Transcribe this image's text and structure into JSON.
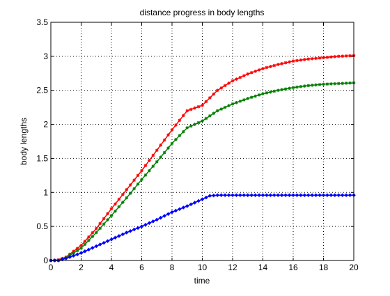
{
  "chart_data": {
    "type": "line",
    "title": "distance progress in body lengths",
    "xlabel": "time",
    "ylabel": "body lengths",
    "xlim": [
      0,
      20
    ],
    "ylim": [
      0,
      3.5
    ],
    "xticks": [
      0,
      2,
      4,
      6,
      8,
      10,
      12,
      14,
      16,
      18,
      20
    ],
    "xtick_labels": [
      "0",
      "2",
      "4",
      "6",
      "8",
      "10",
      "12",
      "14",
      "16",
      "18",
      "20"
    ],
    "yticks": [
      0,
      0.5,
      1,
      1.5,
      2,
      2.5,
      3,
      3.5
    ],
    "ytick_labels": [
      "0",
      "0.5",
      "1",
      "1.5",
      "2",
      "2.5",
      "3",
      "3.5"
    ],
    "grid": "on",
    "series": [
      {
        "color": "#ff0000",
        "marker": "star",
        "points": [
          [
            0,
            0
          ],
          [
            0.5,
            0.01
          ],
          [
            1,
            0.05
          ],
          [
            2,
            0.22
          ],
          [
            3,
            0.47
          ],
          [
            4,
            0.76
          ],
          [
            5,
            1.04
          ],
          [
            6,
            1.32
          ],
          [
            7,
            1.62
          ],
          [
            8,
            1.92
          ],
          [
            9,
            2.2
          ],
          [
            10,
            2.28
          ],
          [
            11,
            2.5
          ],
          [
            12,
            2.64
          ],
          [
            13,
            2.74
          ],
          [
            14,
            2.82
          ],
          [
            15,
            2.88
          ],
          [
            16,
            2.93
          ],
          [
            17,
            2.96
          ],
          [
            18,
            2.98
          ],
          [
            19,
            3.0
          ],
          [
            20,
            3.01
          ]
        ]
      },
      {
        "color": "#008000",
        "marker": "star",
        "points": [
          [
            0,
            0
          ],
          [
            0.5,
            0.0
          ],
          [
            1,
            0.04
          ],
          [
            2,
            0.18
          ],
          [
            3,
            0.41
          ],
          [
            4,
            0.66
          ],
          [
            5,
            0.92
          ],
          [
            6,
            1.19
          ],
          [
            7,
            1.45
          ],
          [
            8,
            1.72
          ],
          [
            9,
            1.95
          ],
          [
            10,
            2.05
          ],
          [
            11,
            2.2
          ],
          [
            12,
            2.3
          ],
          [
            13,
            2.38
          ],
          [
            14,
            2.45
          ],
          [
            15,
            2.5
          ],
          [
            16,
            2.54
          ],
          [
            17,
            2.57
          ],
          [
            18,
            2.59
          ],
          [
            19,
            2.6
          ],
          [
            20,
            2.61
          ]
        ]
      },
      {
        "color": "#0000ff",
        "marker": "diamond",
        "points": [
          [
            0,
            0
          ],
          [
            0.5,
            0.0
          ],
          [
            1,
            0.03
          ],
          [
            2,
            0.11
          ],
          [
            3,
            0.21
          ],
          [
            4,
            0.31
          ],
          [
            5,
            0.41
          ],
          [
            6,
            0.5
          ],
          [
            7,
            0.6
          ],
          [
            8,
            0.71
          ],
          [
            9,
            0.8
          ],
          [
            10,
            0.9
          ],
          [
            10.5,
            0.95
          ],
          [
            11,
            0.96
          ],
          [
            12,
            0.96
          ],
          [
            13,
            0.96
          ],
          [
            14,
            0.96
          ],
          [
            15,
            0.96
          ],
          [
            16,
            0.96
          ],
          [
            17,
            0.96
          ],
          [
            18,
            0.96
          ],
          [
            19,
            0.96
          ],
          [
            20,
            0.96
          ]
        ]
      }
    ]
  }
}
